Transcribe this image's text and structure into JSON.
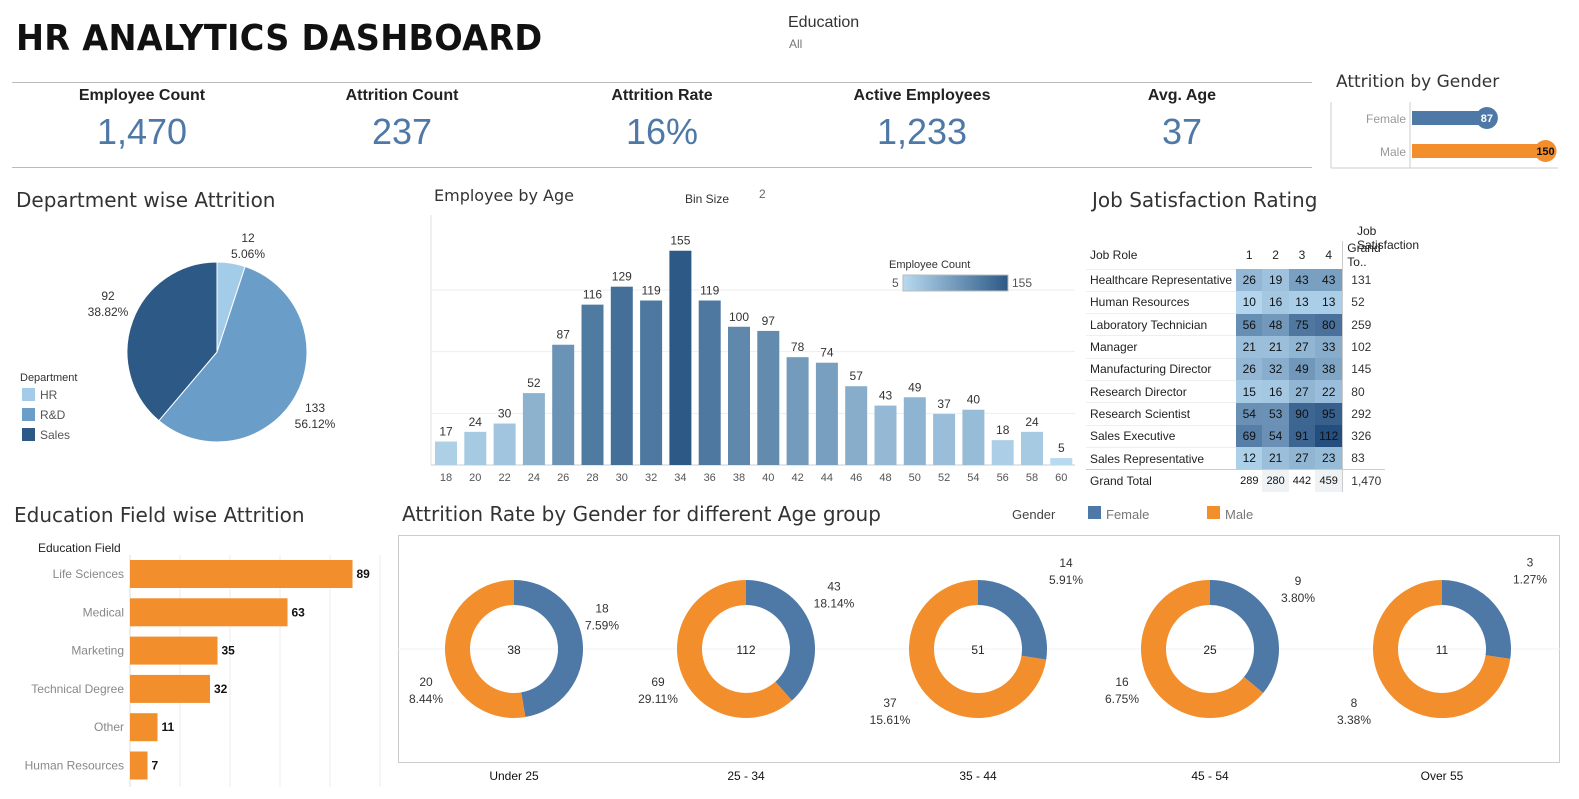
{
  "header": {
    "title": "HR ANALYTICS DASHBOARD"
  },
  "filter": {
    "label": "Education",
    "value": "All"
  },
  "kpis": [
    {
      "label": "Employee Count",
      "value": "1,470"
    },
    {
      "label": "Attrition Count",
      "value": "237"
    },
    {
      "label": "Attrition Rate",
      "value": "16%"
    },
    {
      "label": "Active Employees",
      "value": "1,233"
    },
    {
      "label": "Avg. Age",
      "value": "37"
    }
  ],
  "colors": {
    "accent": "#4e79a7",
    "female": "#4e79a7",
    "male": "#f28e2b",
    "hr": "#a3cce9",
    "rnd": "#6a9ec8",
    "sales": "#2c5985"
  },
  "sections": {
    "gender": "Attrition by Gender",
    "department": "Department wise Attrition",
    "age": "Employee by Age",
    "bin_label": "Bin Size",
    "bin_value": "2",
    "job": "Job Satisfaction Rating",
    "education": "Education Field wise Attrition",
    "agegroup": "Attrition Rate by Gender for different Age group"
  },
  "chart_data": [
    {
      "id": "gender",
      "type": "bar",
      "title": "Attrition by Gender",
      "categories": [
        "Female",
        "Male"
      ],
      "values": [
        87,
        150
      ]
    },
    {
      "id": "department",
      "type": "pie",
      "title": "Department wise Attrition",
      "legend_title": "Department",
      "legend_position": "left",
      "slices": [
        {
          "label": "HR",
          "value": 12,
          "pct": "5.06%"
        },
        {
          "label": "R&D",
          "value": 133,
          "pct": "56.12%"
        },
        {
          "label": "Sales",
          "value": 92,
          "pct": "38.82%"
        }
      ]
    },
    {
      "id": "age",
      "type": "bar",
      "title": "Employee by Age",
      "legend_title": "Employee Count",
      "legend_range": [
        5,
        155
      ],
      "legend_min_label": "5",
      "legend_max_label": "155",
      "categories": [
        "18",
        "20",
        "22",
        "24",
        "26",
        "28",
        "30",
        "32",
        "34",
        "36",
        "38",
        "40",
        "42",
        "44",
        "46",
        "48",
        "50",
        "52",
        "54",
        "56",
        "58",
        "60"
      ],
      "values": [
        17,
        24,
        30,
        52,
        87,
        116,
        129,
        119,
        155,
        119,
        100,
        97,
        78,
        74,
        57,
        43,
        49,
        37,
        40,
        18,
        24,
        5
      ],
      "ylim": [
        0,
        170
      ],
      "grid": true
    },
    {
      "id": "job",
      "type": "table",
      "title": "Job Satisfaction Rating",
      "group_header": "Job Satisfaction",
      "columns": [
        "Job Role",
        "1",
        "2",
        "3",
        "4",
        "Grand To.."
      ],
      "rows": [
        {
          "role": "Healthcare Representative",
          "values": [
            26,
            19,
            43,
            43
          ],
          "total": "131"
        },
        {
          "role": "Human Resources",
          "values": [
            10,
            16,
            13,
            13
          ],
          "total": "52"
        },
        {
          "role": "Laboratory Technician",
          "values": [
            56,
            48,
            75,
            80
          ],
          "total": "259"
        },
        {
          "role": "Manager",
          "values": [
            21,
            21,
            27,
            33
          ],
          "total": "102"
        },
        {
          "role": "Manufacturing Director",
          "values": [
            26,
            32,
            49,
            38
          ],
          "total": "145"
        },
        {
          "role": "Research Director",
          "values": [
            15,
            16,
            27,
            22
          ],
          "total": "80"
        },
        {
          "role": "Research Scientist",
          "values": [
            54,
            53,
            90,
            95
          ],
          "total": "292"
        },
        {
          "role": "Sales Executive",
          "values": [
            69,
            54,
            91,
            112
          ],
          "total": "326"
        },
        {
          "role": "Sales Representative",
          "values": [
            12,
            21,
            27,
            23
          ],
          "total": "83"
        }
      ],
      "grand_total": {
        "label": "Grand Total",
        "values": [
          "289",
          "280",
          "442",
          "459"
        ],
        "total": "1,470"
      }
    },
    {
      "id": "education",
      "type": "bar",
      "title": "Education Field wise Attrition",
      "axis_title": "Education Field",
      "categories": [
        "Life Sciences",
        "Medical",
        "Marketing",
        "Technical Degree",
        "Other",
        "Human Resources"
      ],
      "values": [
        89,
        63,
        35,
        32,
        11,
        7
      ],
      "xlim": [
        0,
        100
      ]
    },
    {
      "id": "agegroup",
      "type": "pie",
      "title": "Attrition Rate by Gender for different Age group",
      "legend_title": "Gender",
      "legend": [
        "Female",
        "Male"
      ],
      "groups": [
        {
          "label": "Under 25",
          "total": "38",
          "female": 18,
          "female_pct": "7.59%",
          "male": 20,
          "male_pct": "8.44%"
        },
        {
          "label": "25 - 34",
          "total": "112",
          "female": 43,
          "female_pct": "18.14%",
          "male": 69,
          "male_pct": "29.11%"
        },
        {
          "label": "35 - 44",
          "total": "51",
          "female": 14,
          "female_pct": "5.91%",
          "male": 37,
          "male_pct": "15.61%"
        },
        {
          "label": "45 - 54",
          "total": "25",
          "female": 9,
          "female_pct": "3.80%",
          "male": 16,
          "male_pct": "6.75%"
        },
        {
          "label": "Over 55",
          "total": "11",
          "female": 3,
          "female_pct": "1.27%",
          "male": 8,
          "male_pct": "3.38%"
        }
      ]
    }
  ]
}
